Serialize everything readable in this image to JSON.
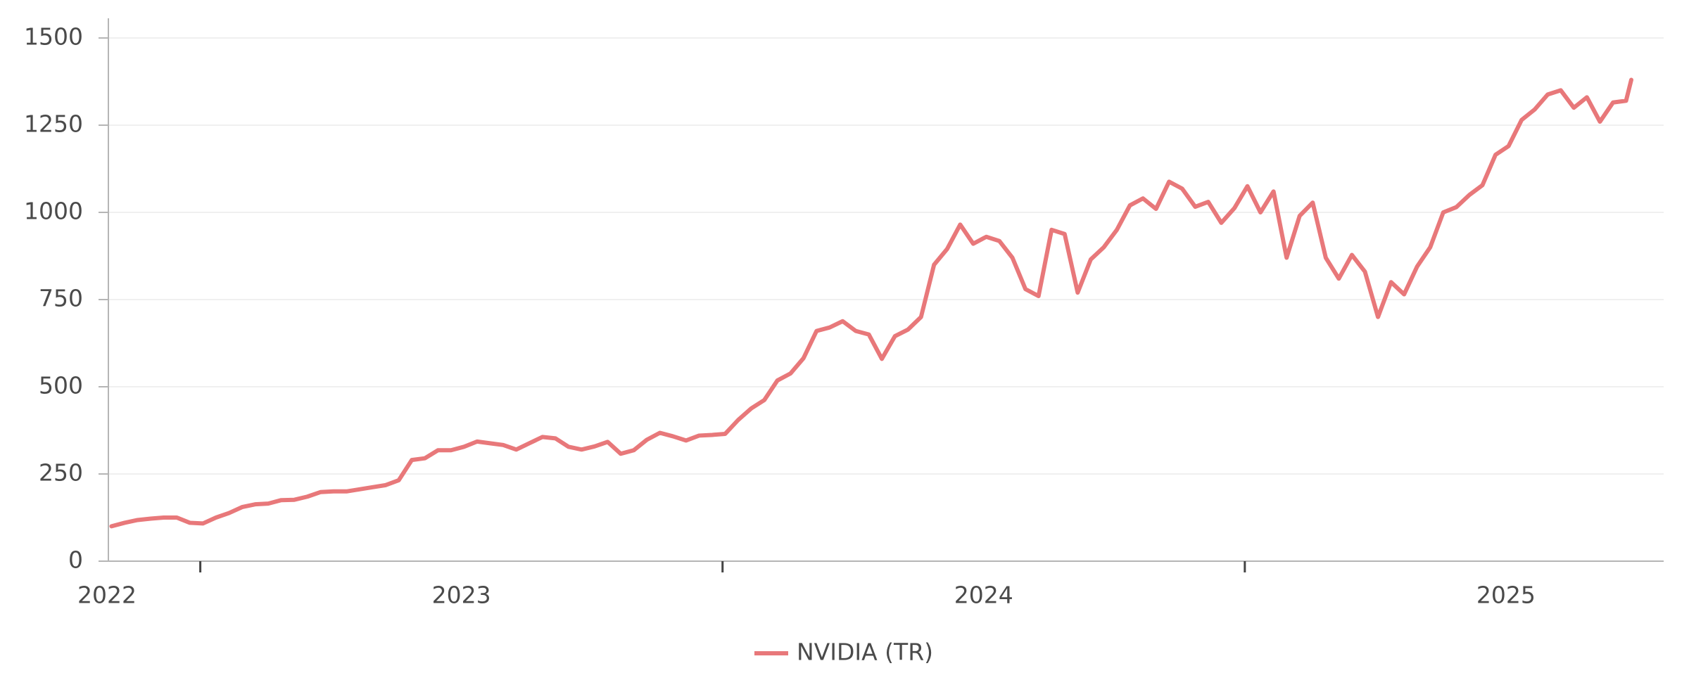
{
  "chart_data": {
    "type": "line",
    "series": [
      {
        "name": "NVIDIA (TR)",
        "color": "#e8787a",
        "values": [
          100,
          110,
          118,
          122,
          125,
          125,
          110,
          108,
          125,
          138,
          155,
          163,
          165,
          175,
          176,
          185,
          198,
          200,
          200,
          206,
          212,
          218,
          232,
          290,
          295,
          318,
          318,
          328,
          343,
          338,
          333,
          320,
          338,
          356,
          352,
          328,
          320,
          329,
          342,
          308,
          318,
          348,
          368,
          358,
          346,
          360,
          362,
          365,
          405,
          438,
          462,
          518,
          538,
          582,
          660,
          670,
          688,
          660,
          650,
          580,
          645,
          664,
          700,
          850,
          895,
          965,
          910,
          930,
          918,
          870,
          780,
          760,
          950,
          938,
          770,
          865,
          900,
          950,
          1020,
          1040,
          1010,
          1088,
          1068,
          1016,
          1030,
          970,
          1012,
          1075,
          1000,
          1060,
          870,
          990,
          1028,
          870,
          810,
          878,
          830,
          700,
          800,
          765,
          845,
          900,
          1000,
          1015,
          1050,
          1078,
          1165,
          1190,
          1265,
          1295,
          1338,
          1350,
          1300,
          1330,
          1260,
          1315,
          1320,
          1380
        ]
      }
    ],
    "x": [
      2022.83,
      2022.855,
      2022.88,
      2022.905,
      2022.93,
      2022.955,
      2022.98,
      2023.005,
      2023.03,
      2023.055,
      2023.08,
      2023.105,
      2023.13,
      2023.155,
      2023.18,
      2023.205,
      2023.23,
      2023.255,
      2023.28,
      2023.305,
      2023.33,
      2023.355,
      2023.38,
      2023.405,
      2023.43,
      2023.455,
      2023.48,
      2023.505,
      2023.53,
      2023.555,
      2023.58,
      2023.605,
      2023.63,
      2023.655,
      2023.68,
      2023.705,
      2023.73,
      2023.755,
      2023.78,
      2023.805,
      2023.83,
      2023.855,
      2023.88,
      2023.905,
      2023.93,
      2023.955,
      2023.98,
      2024.005,
      2024.03,
      2024.055,
      2024.08,
      2024.105,
      2024.13,
      2024.155,
      2024.18,
      2024.205,
      2024.23,
      2024.255,
      2024.28,
      2024.305,
      2024.33,
      2024.355,
      2024.38,
      2024.405,
      2024.43,
      2024.455,
      2024.48,
      2024.505,
      2024.53,
      2024.555,
      2024.58,
      2024.605,
      2024.63,
      2024.655,
      2024.68,
      2024.705,
      2024.73,
      2024.755,
      2024.78,
      2024.805,
      2024.83,
      2024.855,
      2024.88,
      2024.905,
      2024.93,
      2024.955,
      2024.98,
      2025.005,
      2025.03,
      2025.055,
      2025.08,
      2025.105,
      2025.13,
      2025.155,
      2025.18,
      2025.205,
      2025.23,
      2025.255,
      2025.28,
      2025.305,
      2025.33,
      2025.355,
      2025.38,
      2025.405,
      2025.43,
      2025.455,
      2025.48,
      2025.505,
      2025.53,
      2025.555,
      2025.58,
      2025.605,
      2025.63,
      2025.655,
      2025.68,
      2025.705,
      2025.73,
      2025.74
    ],
    "xlim": [
      2022.824,
      2025.802
    ],
    "xticks": [
      {
        "value": 2022.5,
        "label": "2022"
      },
      {
        "value": 2023.5,
        "label": "2023"
      },
      {
        "value": 2024.5,
        "label": "2024"
      },
      {
        "value": 2025.5,
        "label": "2025"
      }
    ],
    "xtick_marks": [
      2023,
      2024,
      2025
    ],
    "ylim": [
      0,
      1500
    ],
    "yticks": [
      0,
      250,
      500,
      750,
      1000,
      1250,
      1500
    ],
    "grid": true,
    "legend": "bottom"
  }
}
